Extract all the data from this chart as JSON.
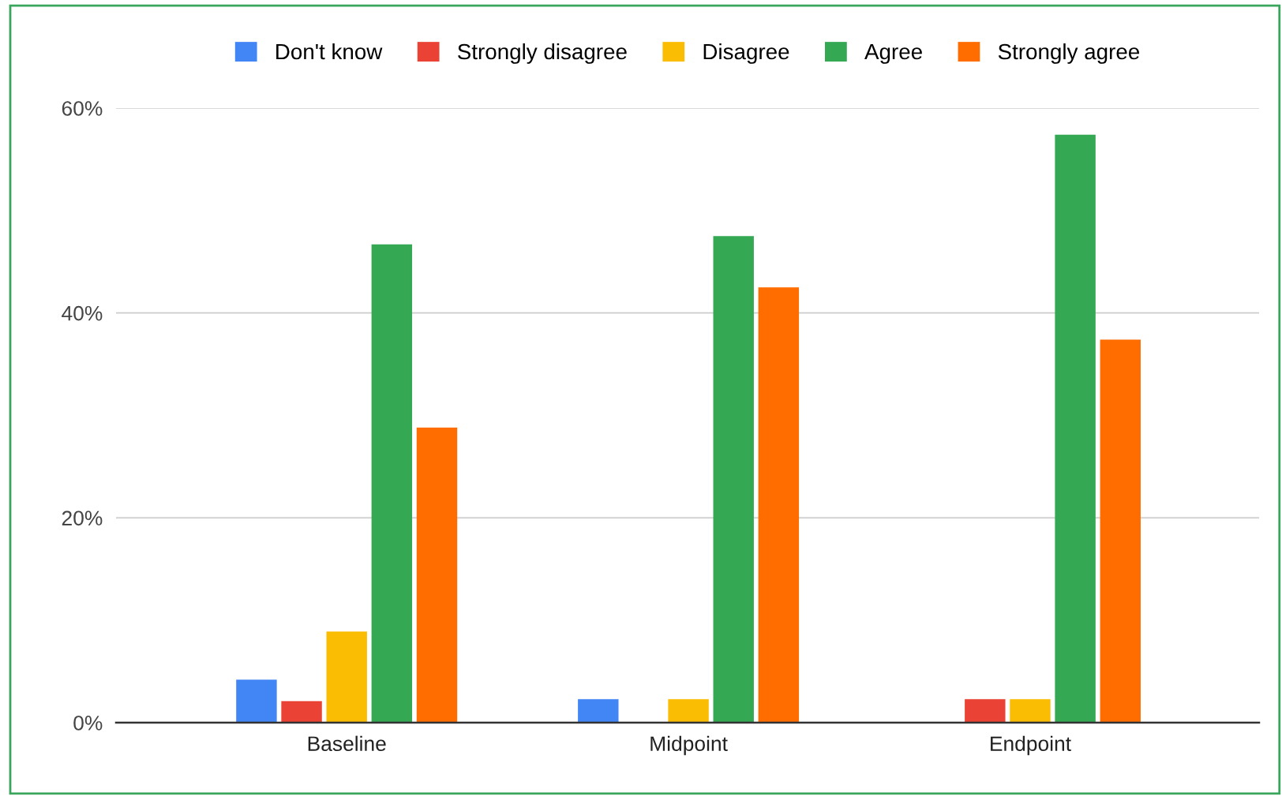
{
  "chart_data": {
    "type": "bar",
    "categories": [
      "Baseline",
      "Midpoint",
      "Endpoint"
    ],
    "series": [
      {
        "name": "Don't know",
        "color": "#4285f4",
        "values": [
          4.2,
          2.3,
          0
        ]
      },
      {
        "name": "Strongly disagree",
        "color": "#ea4335",
        "values": [
          2.1,
          0,
          2.3
        ]
      },
      {
        "name": "Disagree",
        "color": "#fbbc04",
        "values": [
          8.9,
          2.3,
          2.3
        ]
      },
      {
        "name": "Agree",
        "color": "#34a853",
        "values": [
          46.7,
          47.5,
          57.4
        ]
      },
      {
        "name": "Strongly agree",
        "color": "#ff6d01",
        "values": [
          28.8,
          42.5,
          37.4
        ]
      }
    ],
    "ylim": [
      0,
      60
    ],
    "yticks": [
      {
        "value": 0,
        "label": "0%"
      },
      {
        "value": 20,
        "label": "20%"
      },
      {
        "value": 40,
        "label": "40%"
      },
      {
        "value": 60,
        "label": "60%"
      }
    ],
    "grid": "y",
    "legend": "top"
  }
}
